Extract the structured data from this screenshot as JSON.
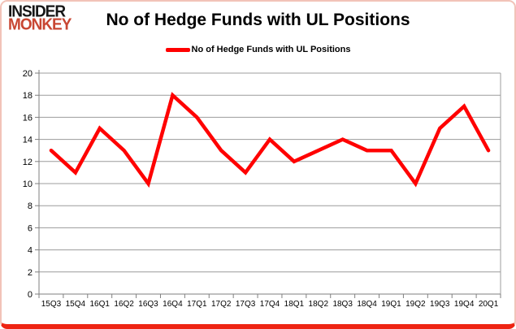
{
  "header": {
    "logo_line1": "INSIDER",
    "logo_line2": "MONKEY",
    "title": "No of Hedge Funds with UL Positions"
  },
  "legend": {
    "label": "No of Hedge Funds with UL Positions",
    "swatch_color": "#ff0000"
  },
  "colors": {
    "line": "#ff0000",
    "grid": "#9c9c9c",
    "axis": "#7f7f7f",
    "tick_label": "#000000",
    "border_side": "#f2c3b8",
    "border_bottom": "#ee2413"
  },
  "chart_data": {
    "type": "line",
    "title": "No of Hedge Funds with UL Positions",
    "categories": [
      "15Q3",
      "15Q4",
      "16Q1",
      "16Q2",
      "16Q3",
      "16Q4",
      "17Q1",
      "17Q2",
      "17Q3",
      "17Q4",
      "18Q1",
      "18Q2",
      "18Q3",
      "18Q4",
      "19Q1",
      "19Q2",
      "19Q3",
      "19Q4",
      "20Q1"
    ],
    "series": [
      {
        "name": "No of Hedge Funds with UL Positions",
        "color": "#ff0000",
        "values": [
          13,
          11,
          15,
          13,
          10,
          18,
          16,
          13,
          11,
          14,
          12,
          13,
          14,
          13,
          13,
          10,
          15,
          17,
          13
        ]
      }
    ],
    "xlabel": "",
    "ylabel": "",
    "ylim": [
      0,
      20
    ],
    "yticks": [
      0,
      2,
      4,
      6,
      8,
      10,
      12,
      14,
      16,
      18,
      20
    ],
    "grid": "horizontal",
    "legend_position": "top"
  }
}
